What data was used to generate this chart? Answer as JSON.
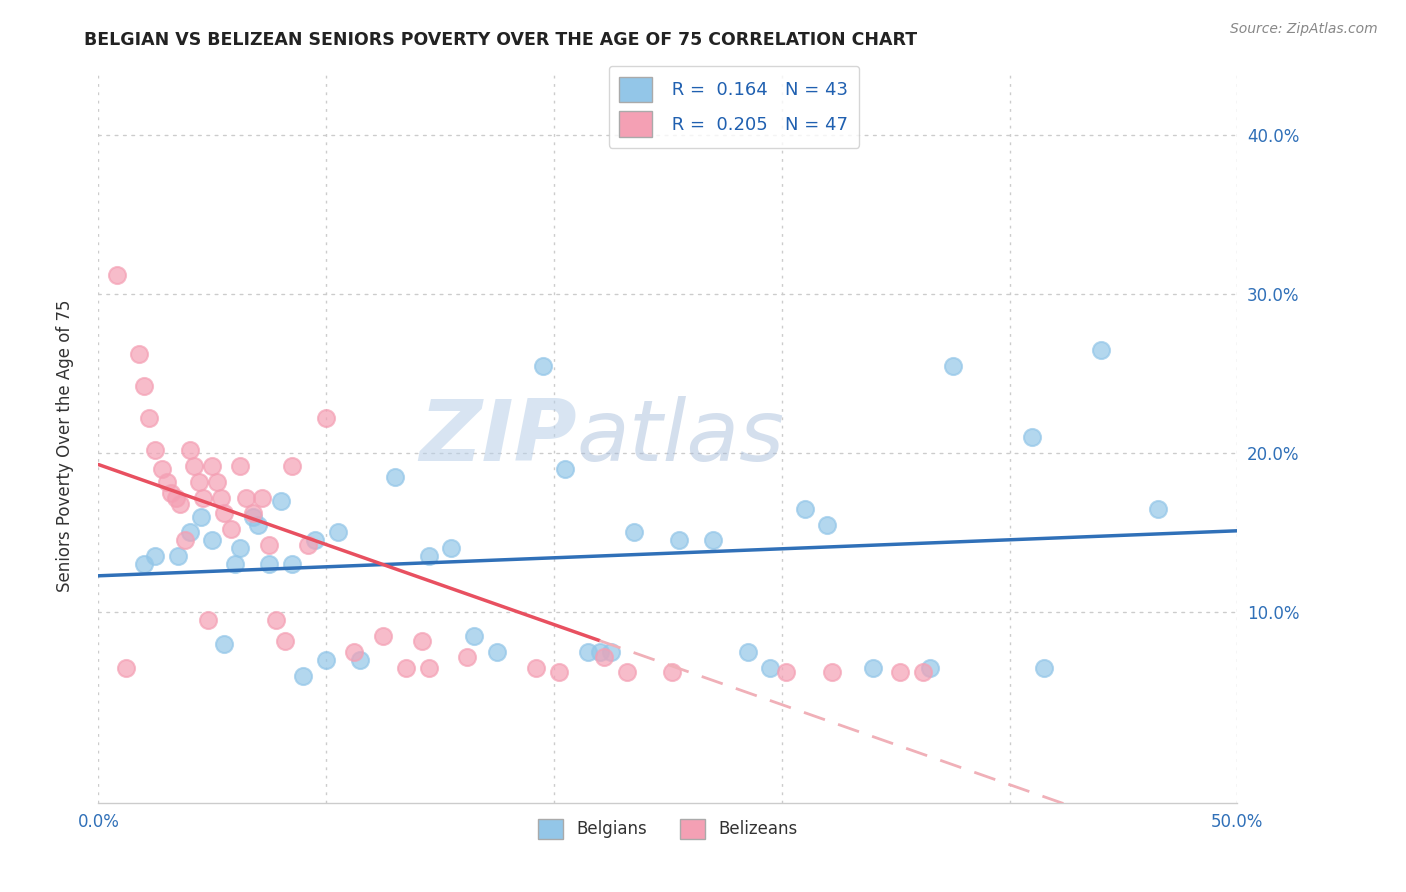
{
  "title": "BELGIAN VS BELIZEAN SENIORS POVERTY OVER THE AGE OF 75 CORRELATION CHART",
  "source": "Source: ZipAtlas.com",
  "ylabel": "Seniors Poverty Over the Age of 75",
  "xlabel": "",
  "xlim": [
    0.0,
    0.5
  ],
  "ylim": [
    -0.02,
    0.44
  ],
  "xticks": [
    0.0,
    0.5
  ],
  "xticklabels_left": "0.0%",
  "xticklabels_right": "50.0%",
  "yticks": [
    0.1,
    0.2,
    0.3,
    0.4
  ],
  "yticklabels": [
    "10.0%",
    "20.0%",
    "30.0%",
    "40.0%"
  ],
  "belgian_color": "#93c6e8",
  "belizean_color": "#f4a0b4",
  "belgian_line_color": "#3070b8",
  "belizean_line_color": "#e85060",
  "belizean_dashed_color": "#f0b0b8",
  "R_belgian": 0.164,
  "N_belgian": 43,
  "R_belizean": 0.205,
  "N_belizean": 47,
  "watermark_zip": "ZIP",
  "watermark_atlas": "atlas",
  "belgians_x": [
    0.02,
    0.025,
    0.035,
    0.04,
    0.045,
    0.05,
    0.055,
    0.06,
    0.062,
    0.068,
    0.07,
    0.075,
    0.08,
    0.085,
    0.09,
    0.095,
    0.1,
    0.105,
    0.115,
    0.13,
    0.145,
    0.155,
    0.165,
    0.175,
    0.195,
    0.205,
    0.215,
    0.22,
    0.225,
    0.235,
    0.255,
    0.27,
    0.285,
    0.295,
    0.31,
    0.32,
    0.34,
    0.365,
    0.375,
    0.41,
    0.415,
    0.44,
    0.465
  ],
  "belgians_y": [
    0.13,
    0.135,
    0.135,
    0.15,
    0.16,
    0.145,
    0.08,
    0.13,
    0.14,
    0.16,
    0.155,
    0.13,
    0.17,
    0.13,
    0.06,
    0.145,
    0.07,
    0.15,
    0.07,
    0.185,
    0.135,
    0.14,
    0.085,
    0.075,
    0.255,
    0.19,
    0.075,
    0.075,
    0.075,
    0.15,
    0.145,
    0.145,
    0.075,
    0.065,
    0.165,
    0.155,
    0.065,
    0.065,
    0.255,
    0.21,
    0.065,
    0.265,
    0.165
  ],
  "belizeans_x": [
    0.008,
    0.012,
    0.018,
    0.02,
    0.022,
    0.025,
    0.028,
    0.03,
    0.032,
    0.034,
    0.036,
    0.038,
    0.04,
    0.042,
    0.044,
    0.046,
    0.048,
    0.05,
    0.052,
    0.054,
    0.055,
    0.058,
    0.062,
    0.065,
    0.068,
    0.072,
    0.075,
    0.078,
    0.082,
    0.085,
    0.092,
    0.1,
    0.112,
    0.125,
    0.135,
    0.142,
    0.145,
    0.162,
    0.192,
    0.202,
    0.222,
    0.232,
    0.252,
    0.302,
    0.322,
    0.352,
    0.362
  ],
  "belizeans_y": [
    0.312,
    0.065,
    0.262,
    0.242,
    0.222,
    0.202,
    0.19,
    0.182,
    0.175,
    0.172,
    0.168,
    0.145,
    0.202,
    0.192,
    0.182,
    0.172,
    0.095,
    0.192,
    0.182,
    0.172,
    0.162,
    0.152,
    0.192,
    0.172,
    0.162,
    0.172,
    0.142,
    0.095,
    0.082,
    0.192,
    0.142,
    0.222,
    0.075,
    0.085,
    0.065,
    0.082,
    0.065,
    0.072,
    0.065,
    0.062,
    0.072,
    0.062,
    0.062,
    0.062,
    0.062,
    0.062,
    0.062
  ]
}
